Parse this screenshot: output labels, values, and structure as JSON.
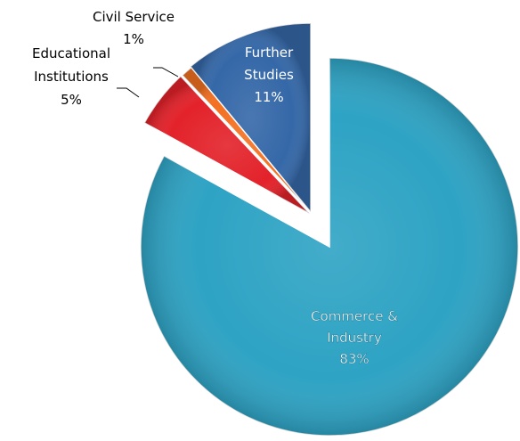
{
  "chart_data": {
    "type": "pie",
    "exploded": true,
    "slices": [
      {
        "name": "Commerce & Industry",
        "label_lines": [
          "Commerce &",
          "Industry",
          "83%"
        ],
        "value": 83,
        "color": "#2ea3c4"
      },
      {
        "name": "Educational Institutions",
        "label_lines": [
          "Educational",
          "Institutions",
          "5%"
        ],
        "value": 5,
        "color": "#e3222a"
      },
      {
        "name": "Civil Service",
        "label_lines": [
          "Civil Service",
          "1%"
        ],
        "value": 1,
        "color": "#f37021"
      },
      {
        "name": "Further Studies",
        "label_lines": [
          "Further",
          "Studies",
          "11%"
        ],
        "value": 11,
        "color": "#3568a8"
      }
    ]
  }
}
